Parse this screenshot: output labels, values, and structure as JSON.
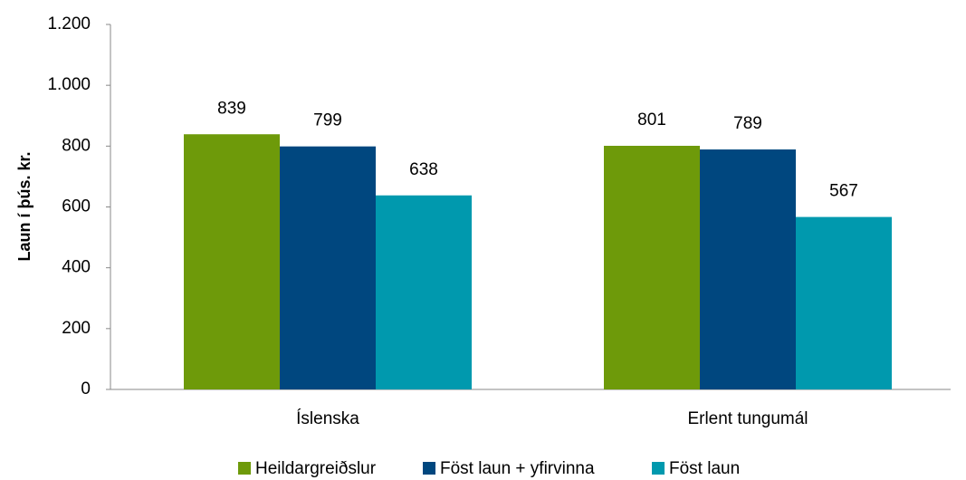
{
  "chart_data": {
    "type": "bar",
    "categories": [
      "Íslenska",
      "Erlent tungumál"
    ],
    "series": [
      {
        "name": "Heildargreiðslur",
        "color": "#6e9a0a",
        "values": [
          839,
          801
        ]
      },
      {
        "name": "Föst laun + yfirvinna",
        "color": "#00477f",
        "values": [
          799,
          789
        ]
      },
      {
        "name": "Föst laun",
        "color": "#0099ae",
        "values": [
          638,
          567
        ]
      }
    ],
    "ylabel": "Laun í þús. kr.",
    "ylim": [
      0,
      1200
    ],
    "yticks": [
      0,
      200,
      400,
      600,
      800,
      {
        "value": 1000,
        "label": "1.000"
      },
      {
        "value": 1200,
        "label": "1.200"
      }
    ],
    "grid": false,
    "legend": "bottom"
  }
}
